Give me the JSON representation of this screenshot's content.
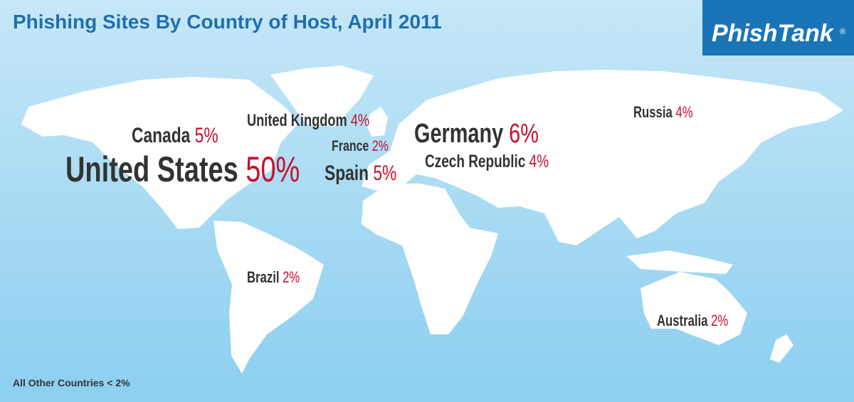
{
  "header": {
    "title": "Phishing Sites By Country of Host, April 2011",
    "logo": "PhishTank",
    "logo_mark": "®"
  },
  "countries": [
    {
      "name": "United States",
      "share": "50%"
    },
    {
      "name": "Canada",
      "share": "5%"
    },
    {
      "name": "United Kingdom",
      "share": "4%"
    },
    {
      "name": "France",
      "share": "2%"
    },
    {
      "name": "Spain",
      "share": "5%"
    },
    {
      "name": "Germany",
      "share": "6%"
    },
    {
      "name": "Czech Republic",
      "share": "4%"
    },
    {
      "name": "Russia",
      "share": "4%"
    },
    {
      "name": "Brazil",
      "share": "2%"
    },
    {
      "name": "Australia",
      "share": "2%"
    }
  ],
  "footnote": "All Other Countries < 2%"
}
